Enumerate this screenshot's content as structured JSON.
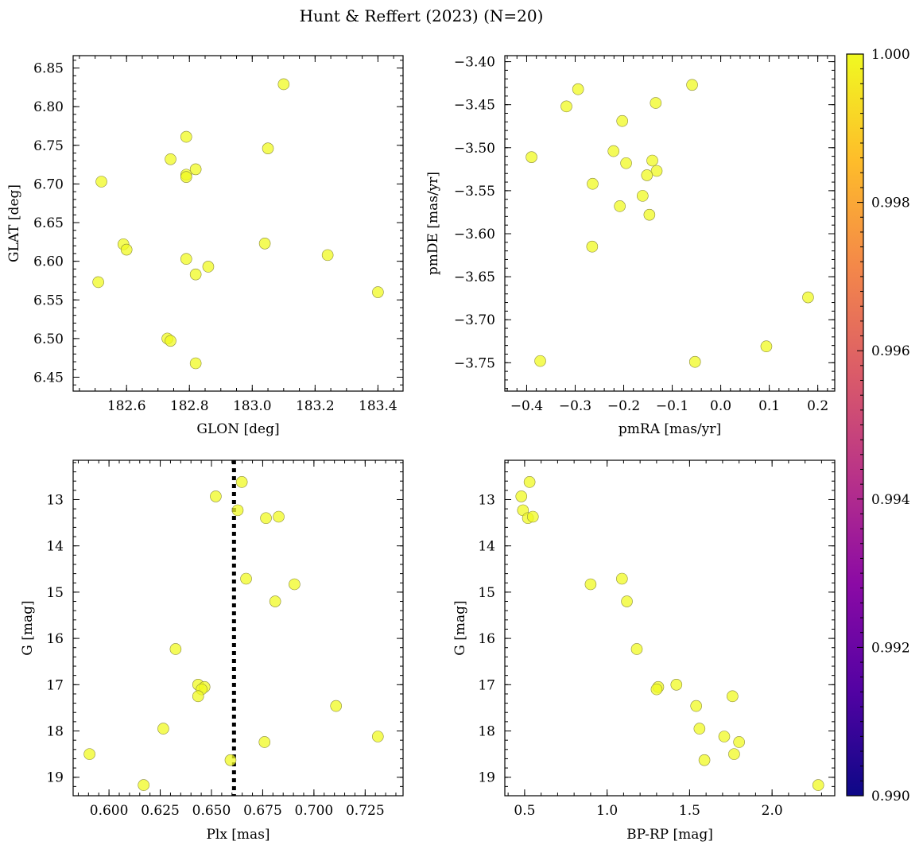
{
  "figure": {
    "title": "Hunt & Reffert (2023) (N=20)",
    "point_color": "#f0f921"
  },
  "colorbar": {
    "min": 0.99,
    "max": 1.0,
    "ticks": [
      "0.990",
      "0.992",
      "0.994",
      "0.996",
      "0.998",
      "1.000"
    ],
    "cmap": [
      "#0d0887",
      "#5302a3",
      "#8b0aa5",
      "#b83289",
      "#db5c68",
      "#f48849",
      "#febd2a",
      "#f0f921"
    ]
  },
  "chart_data": [
    {
      "type": "scatter",
      "id": "glon-glat",
      "xlabel": "GLON [deg]",
      "ylabel": "GLAT [deg]",
      "xlim": [
        182.43,
        183.48
      ],
      "ylim": [
        6.432,
        6.866
      ],
      "xticks": [
        {
          "v": 182.6,
          "l": "182.6"
        },
        {
          "v": 182.8,
          "l": "182.8"
        },
        {
          "v": 183.0,
          "l": "183.0"
        },
        {
          "v": 183.2,
          "l": "183.2"
        },
        {
          "v": 183.4,
          "l": "183.4"
        }
      ],
      "yticks": [
        {
          "v": 6.45,
          "l": "6.45"
        },
        {
          "v": 6.5,
          "l": "6.50"
        },
        {
          "v": 6.55,
          "l": "6.55"
        },
        {
          "v": 6.6,
          "l": "6.60"
        },
        {
          "v": 6.65,
          "l": "6.65"
        },
        {
          "v": 6.7,
          "l": "6.70"
        },
        {
          "v": 6.75,
          "l": "6.75"
        },
        {
          "v": 6.8,
          "l": "6.80"
        },
        {
          "v": 6.85,
          "l": "6.85"
        }
      ],
      "minor_x": 0.05,
      "minor_y": 0.01,
      "x": [
        183.1,
        182.79,
        183.05,
        182.74,
        182.82,
        182.79,
        182.79,
        182.52,
        182.59,
        182.6,
        183.04,
        183.24,
        182.79,
        182.86,
        182.82,
        182.51,
        183.4,
        182.73,
        182.74,
        182.82
      ],
      "y": [
        6.829,
        6.761,
        6.746,
        6.732,
        6.719,
        6.712,
        6.709,
        6.703,
        6.622,
        6.615,
        6.623,
        6.608,
        6.603,
        6.593,
        6.583,
        6.573,
        6.56,
        6.5,
        6.497,
        6.468
      ]
    },
    {
      "type": "scatter",
      "id": "pmra-pmde",
      "xlabel": "pmRA [mas/yr]",
      "ylabel": "pmDE [mas/yr]",
      "xlim": [
        -0.445,
        0.235
      ],
      "ylim": [
        -3.783,
        -3.393
      ],
      "xticks": [
        {
          "v": -0.4,
          "l": "−0.4"
        },
        {
          "v": -0.3,
          "l": "−0.3"
        },
        {
          "v": -0.2,
          "l": "−0.2"
        },
        {
          "v": -0.1,
          "l": "−0.1"
        },
        {
          "v": 0.0,
          "l": "0.0"
        },
        {
          "v": 0.1,
          "l": "0.1"
        },
        {
          "v": 0.2,
          "l": "0.2"
        }
      ],
      "yticks": [
        {
          "v": -3.75,
          "l": "−3.75"
        },
        {
          "v": -3.7,
          "l": "−3.70"
        },
        {
          "v": -3.65,
          "l": "−3.65"
        },
        {
          "v": -3.6,
          "l": "−3.60"
        },
        {
          "v": -3.55,
          "l": "−3.55"
        },
        {
          "v": -3.5,
          "l": "−3.50"
        },
        {
          "v": -3.45,
          "l": "−3.45"
        },
        {
          "v": -3.4,
          "l": "−3.40"
        }
      ],
      "minor_x": 0.02,
      "minor_y": 0.01,
      "x": [
        -0.059,
        -0.294,
        -0.318,
        -0.134,
        -0.203,
        -0.39,
        -0.221,
        -0.195,
        -0.141,
        -0.132,
        -0.152,
        -0.264,
        -0.161,
        -0.208,
        -0.147,
        -0.265,
        0.18,
        0.094,
        -0.372,
        -0.053
      ],
      "y": [
        -3.427,
        -3.432,
        -3.452,
        -3.448,
        -3.469,
        -3.511,
        -3.504,
        -3.518,
        -3.515,
        -3.527,
        -3.532,
        -3.542,
        -3.556,
        -3.568,
        -3.578,
        -3.615,
        -3.674,
        -3.731,
        -3.748,
        -3.749
      ]
    },
    {
      "type": "scatter",
      "id": "plx-g",
      "xlabel": "Plx [mas]",
      "ylabel": "G [mag]",
      "xlim": [
        0.5825,
        0.7435
      ],
      "ylim": [
        19.4,
        12.15
      ],
      "y_inverted": true,
      "vline": 0.661,
      "xticks": [
        {
          "v": 0.6,
          "l": "0.600"
        },
        {
          "v": 0.625,
          "l": "0.625"
        },
        {
          "v": 0.65,
          "l": "0.650"
        },
        {
          "v": 0.675,
          "l": "0.675"
        },
        {
          "v": 0.7,
          "l": "0.700"
        },
        {
          "v": 0.725,
          "l": "0.725"
        }
      ],
      "yticks": [
        {
          "v": 13,
          "l": "13"
        },
        {
          "v": 14,
          "l": "14"
        },
        {
          "v": 15,
          "l": "15"
        },
        {
          "v": 16,
          "l": "16"
        },
        {
          "v": 17,
          "l": "17"
        },
        {
          "v": 18,
          "l": "18"
        },
        {
          "v": 19,
          "l": "19"
        }
      ],
      "minor_x": 0.005,
      "minor_y": 0.2,
      "x": [
        0.6648,
        0.6521,
        0.6628,
        0.6766,
        0.6828,
        0.6669,
        0.6905,
        0.6811,
        0.6325,
        0.6435,
        0.6466,
        0.6452,
        0.6435,
        0.7108,
        0.6265,
        0.7312,
        0.6759,
        0.5905,
        0.6593,
        0.6169
      ],
      "y": [
        12.62,
        12.93,
        13.23,
        13.4,
        13.37,
        14.71,
        14.83,
        15.2,
        16.23,
        17.0,
        17.05,
        17.1,
        17.25,
        17.46,
        17.95,
        18.12,
        18.24,
        18.5,
        18.63,
        19.17
      ]
    },
    {
      "type": "scatter",
      "id": "bprp-g",
      "xlabel": "BP-RP [mag]",
      "ylabel": "G [mag]",
      "xlim": [
        0.38,
        2.38
      ],
      "ylim": [
        19.4,
        12.15
      ],
      "y_inverted": true,
      "xticks": [
        {
          "v": 0.5,
          "l": "0.5"
        },
        {
          "v": 1.0,
          "l": "1.0"
        },
        {
          "v": 1.5,
          "l": "1.5"
        },
        {
          "v": 2.0,
          "l": "2.0"
        }
      ],
      "yticks": [
        {
          "v": 13,
          "l": "13"
        },
        {
          "v": 14,
          "l": "14"
        },
        {
          "v": 15,
          "l": "15"
        },
        {
          "v": 16,
          "l": "16"
        },
        {
          "v": 17,
          "l": "17"
        },
        {
          "v": 18,
          "l": "18"
        },
        {
          "v": 19,
          "l": "19"
        }
      ],
      "minor_x": 0.1,
      "minor_y": 0.2,
      "x": [
        0.53,
        0.48,
        0.49,
        0.52,
        0.55,
        1.09,
        0.9,
        1.12,
        1.18,
        1.42,
        1.31,
        1.3,
        1.76,
        1.54,
        1.56,
        1.71,
        1.8,
        1.77,
        1.59,
        2.28
      ],
      "y": [
        12.62,
        12.93,
        13.23,
        13.4,
        13.37,
        14.71,
        14.83,
        15.2,
        16.23,
        17.0,
        17.05,
        17.1,
        17.25,
        17.46,
        17.95,
        18.12,
        18.24,
        18.5,
        18.63,
        19.17
      ]
    }
  ]
}
